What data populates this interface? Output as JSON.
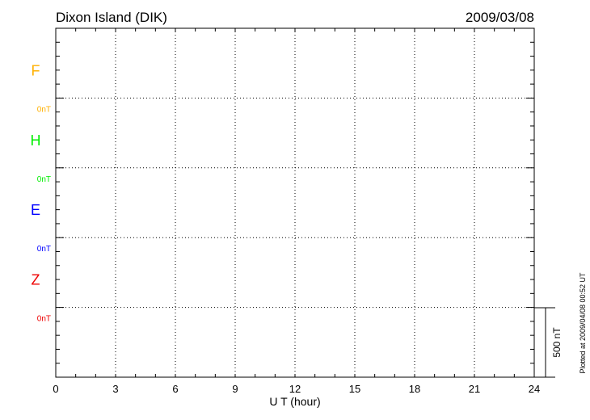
{
  "chart_data": {
    "type": "line",
    "title": "Dixon Island (DIK)",
    "date": "2009/03/08",
    "xlabel": "U T (hour)",
    "xlim": [
      0,
      24
    ],
    "xticks": [
      "0",
      "3",
      "6",
      "9",
      "12",
      "15",
      "18",
      "21",
      "24"
    ],
    "grid": true,
    "series": [
      {
        "name": "F",
        "baseline_label": "0nT",
        "color": "#ffb000",
        "values": []
      },
      {
        "name": "H",
        "baseline_label": "0nT",
        "color": "#00ee00",
        "values": []
      },
      {
        "name": "E",
        "baseline_label": "0nT",
        "color": "#0000ff",
        "values": []
      },
      {
        "name": "Z",
        "baseline_label": "0nT",
        "color": "#ee0000",
        "values": []
      }
    ],
    "scale_bar_label": "500 nT",
    "footer": "Plotted at 2009/04/08 00:52 UT"
  }
}
